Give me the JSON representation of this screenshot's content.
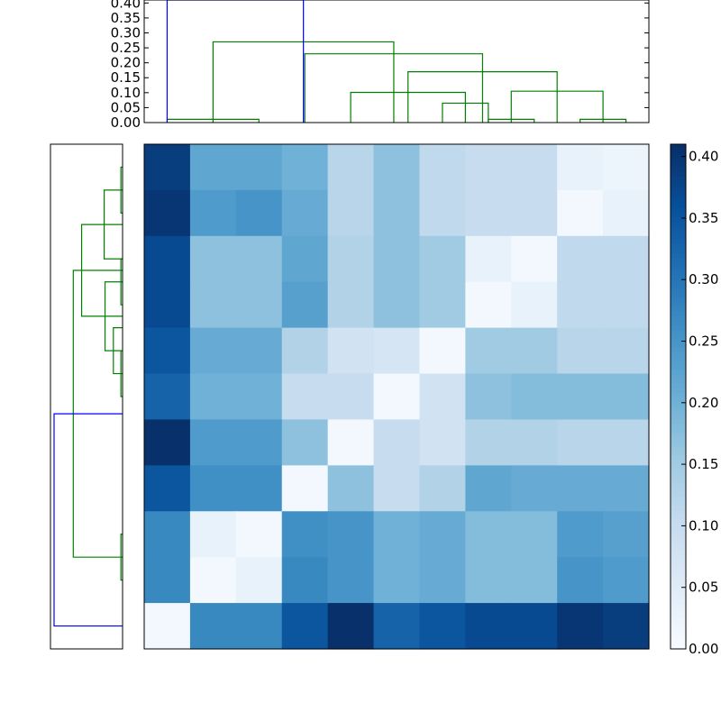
{
  "chart_data": [
    {
      "type": "dendrogram",
      "orientation": "top",
      "ytick_labels": [
        "0.00",
        "0.05",
        "0.10",
        "0.15",
        "0.20",
        "0.25",
        "0.30",
        "0.35",
        "0.40"
      ],
      "ylim": [
        0,
        0.41
      ],
      "colors": {
        "above_threshold": "#0000ff",
        "cluster": "#008000"
      },
      "links": [
        {
          "x": [
            0.5,
            2.5
          ],
          "height": 0.011,
          "color": "cluster"
        },
        {
          "x": [
            6.5,
            7.5
          ],
          "height": 0.065,
          "color": "cluster"
        },
        {
          "x": [
            4.5,
            7.0
          ],
          "height": 0.101,
          "color": "cluster"
        },
        {
          "x": [
            7.5,
            8.5
          ],
          "height": 0.011,
          "color": "cluster"
        },
        {
          "x": [
            9.5,
            10.5
          ],
          "height": 0.011,
          "color": "cluster"
        },
        {
          "x": [
            8.0,
            10.0
          ],
          "height": 0.105,
          "color": "cluster"
        },
        {
          "x": [
            5.75,
            9.0
          ],
          "height": 0.17,
          "color": "cluster"
        },
        {
          "x": [
            3.5,
            7.375
          ],
          "height": 0.23,
          "color": "cluster"
        },
        {
          "x": [
            1.5,
            5.44
          ],
          "height": 0.27,
          "color": "cluster"
        },
        {
          "x": [
            0.5,
            3.47
          ],
          "height": 0.41,
          "color": "above_threshold"
        }
      ]
    },
    {
      "type": "dendrogram",
      "orientation": "left",
      "colors": {
        "above_threshold": "#0000ff",
        "cluster": "#008000"
      },
      "links": [
        {
          "y": [
            0.5,
            1.5
          ],
          "height": 0.01,
          "color": "cluster"
        },
        {
          "y": [
            1.0,
            2.5
          ],
          "height": 0.11,
          "color": "cluster"
        },
        {
          "y": [
            2.5,
            3.5
          ],
          "height": 0.01,
          "color": "cluster"
        },
        {
          "y": [
            4.5,
            5.5
          ],
          "height": 0.01,
          "color": "cluster"
        },
        {
          "y": [
            4.0,
            5.0
          ],
          "height": 0.055,
          "color": "cluster"
        },
        {
          "y": [
            3.0,
            4.5
          ],
          "height": 0.105,
          "color": "cluster"
        },
        {
          "y": [
            1.75,
            3.75
          ],
          "height": 0.245,
          "color": "cluster"
        },
        {
          "y": [
            8.5,
            9.5
          ],
          "height": 0.01,
          "color": "cluster"
        },
        {
          "y": [
            2.75,
            9.0
          ],
          "height": 0.295,
          "color": "cluster"
        },
        {
          "y": [
            5.875,
            10.5
          ],
          "height": 0.41,
          "color": "above_threshold"
        }
      ]
    },
    {
      "type": "heatmap",
      "colorscale": "Blues",
      "vmin": 0,
      "vmax": 0.41,
      "colorbar_ticks": [
        "0.00",
        "0.05",
        "0.10",
        "0.15",
        "0.20",
        "0.25",
        "0.30",
        "0.35",
        "0.40"
      ],
      "matrix": [
        [
          0.39,
          0.22,
          0.22,
          0.2,
          0.12,
          0.17,
          0.11,
          0.1,
          0.1,
          0.03,
          0.02
        ],
        [
          0.4,
          0.24,
          0.25,
          0.21,
          0.12,
          0.17,
          0.11,
          0.1,
          0.1,
          0.01,
          0.03
        ],
        [
          0.37,
          0.17,
          0.17,
          0.22,
          0.13,
          0.17,
          0.15,
          0.03,
          0.01,
          0.11,
          0.11
        ],
        [
          0.37,
          0.17,
          0.17,
          0.23,
          0.13,
          0.17,
          0.15,
          0.01,
          0.03,
          0.11,
          0.11
        ],
        [
          0.35,
          0.21,
          0.21,
          0.13,
          0.08,
          0.07,
          0.01,
          0.15,
          0.15,
          0.12,
          0.12
        ],
        [
          0.33,
          0.2,
          0.2,
          0.1,
          0.1,
          0.01,
          0.08,
          0.17,
          0.18,
          0.18,
          0.18
        ],
        [
          0.41,
          0.24,
          0.24,
          0.17,
          0.01,
          0.1,
          0.08,
          0.13,
          0.13,
          0.12,
          0.12
        ],
        [
          0.35,
          0.26,
          0.26,
          0.01,
          0.17,
          0.1,
          0.13,
          0.22,
          0.21,
          0.21,
          0.21
        ],
        [
          0.27,
          0.03,
          0.01,
          0.26,
          0.25,
          0.2,
          0.21,
          0.18,
          0.18,
          0.24,
          0.23
        ],
        [
          0.27,
          0.01,
          0.03,
          0.27,
          0.25,
          0.2,
          0.21,
          0.18,
          0.18,
          0.25,
          0.24
        ],
        [
          0.01,
          0.27,
          0.27,
          0.35,
          0.41,
          0.33,
          0.35,
          0.37,
          0.37,
          0.4,
          0.39
        ]
      ]
    }
  ]
}
